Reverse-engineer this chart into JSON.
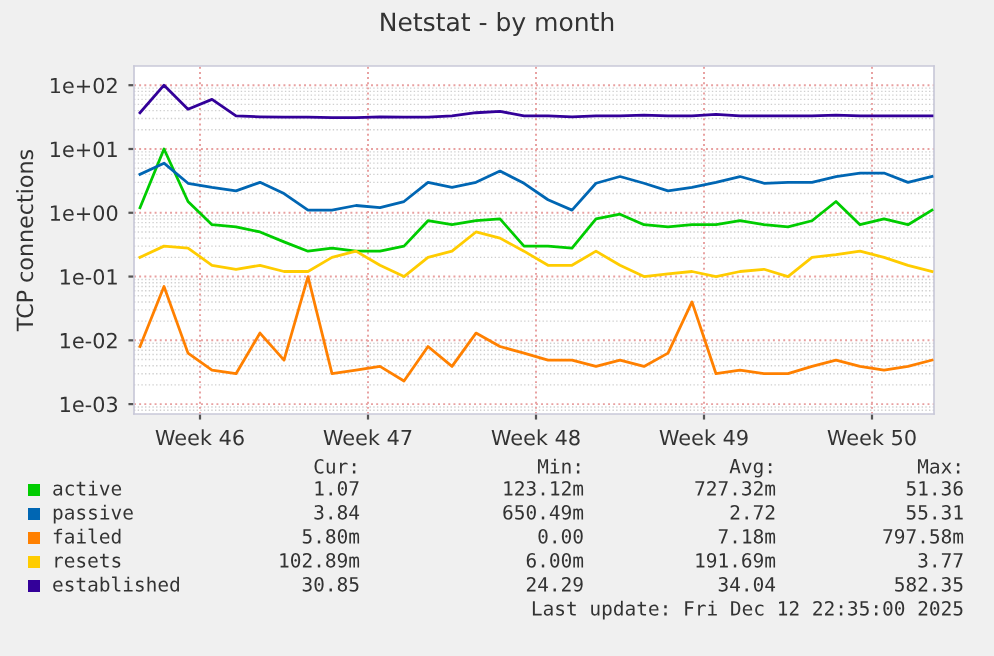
{
  "chart_data": {
    "type": "line",
    "title": "Netstat - by month",
    "ylabel": "TCP connections",
    "x": [
      "2025-11-11",
      "2025-11-12",
      "2025-11-13",
      "2025-11-14",
      "2025-11-15",
      "2025-11-16",
      "2025-11-17",
      "2025-11-18",
      "2025-11-19",
      "2025-11-20",
      "2025-11-21",
      "2025-11-22",
      "2025-11-23",
      "2025-11-24",
      "2025-11-25",
      "2025-11-26",
      "2025-11-27",
      "2025-11-28",
      "2025-11-29",
      "2025-11-30",
      "2025-12-01",
      "2025-12-02",
      "2025-12-03",
      "2025-12-04",
      "2025-12-05",
      "2025-12-06",
      "2025-12-07",
      "2025-12-08",
      "2025-12-09",
      "2025-12-10",
      "2025-12-11",
      "2025-12-12",
      "2025-12-13",
      "2025-12-14"
    ],
    "series": [
      {
        "name": "active",
        "color": "#00cc00",
        "values": [
          1.2,
          10,
          1.5,
          0.65,
          0.6,
          0.5,
          0.35,
          0.25,
          0.28,
          0.25,
          0.25,
          0.3,
          0.75,
          0.65,
          0.75,
          0.8,
          0.3,
          0.3,
          0.28,
          0.8,
          0.95,
          0.65,
          0.6,
          0.65,
          0.65,
          0.75,
          0.65,
          0.6,
          0.75,
          1.5,
          0.65,
          0.8,
          0.65,
          1.1
        ]
      },
      {
        "name": "passive",
        "color": "#0066b3",
        "values": [
          4,
          6,
          2.9,
          2.5,
          2.2,
          3,
          2,
          1.1,
          1.1,
          1.3,
          1.2,
          1.5,
          3,
          2.5,
          3,
          4.5,
          2.9,
          1.6,
          1.1,
          2.9,
          3.7,
          2.9,
          2.2,
          2.5,
          3,
          3.7,
          2.9,
          3,
          3,
          3.7,
          4.2,
          4.2,
          3,
          3.7
        ]
      },
      {
        "name": "failed",
        "color": "#ff8000",
        "values": [
          0.008,
          0.07,
          0.0063,
          0.0034,
          0.003,
          0.013,
          0.0049,
          0.1,
          0.003,
          0.0034,
          0.0039,
          0.0023,
          0.008,
          0.0039,
          0.013,
          0.008,
          0.0063,
          0.0049,
          0.0049,
          0.0039,
          0.0049,
          0.0039,
          0.0063,
          0.04,
          0.003,
          0.0034,
          0.003,
          0.003,
          0.0039,
          0.0049,
          0.0039,
          0.0034,
          0.0039,
          0.0049
        ]
      },
      {
        "name": "resets",
        "color": "#ffcc00",
        "values": [
          0.2,
          0.3,
          0.28,
          0.15,
          0.13,
          0.15,
          0.12,
          0.12,
          0.2,
          0.25,
          0.15,
          0.1,
          0.2,
          0.25,
          0.5,
          0.4,
          0.25,
          0.15,
          0.15,
          0.25,
          0.15,
          0.1,
          0.11,
          0.12,
          0.1,
          0.12,
          0.13,
          0.1,
          0.2,
          0.22,
          0.25,
          0.2,
          0.15,
          0.12
        ]
      },
      {
        "name": "established",
        "color": "#330099",
        "values": [
          37,
          100,
          42,
          60,
          33,
          32,
          31.5,
          31.5,
          31,
          31,
          32,
          31.5,
          31.5,
          33,
          37,
          39,
          33,
          33,
          32,
          33,
          33,
          34,
          33,
          33,
          35,
          33,
          33,
          33,
          33,
          34,
          33,
          33,
          33,
          33
        ]
      }
    ],
    "xlim": [
      "2025-11-10T18:00",
      "2025-12-14T02:00"
    ],
    "xticks": [
      {
        "value": "2025-11-13T12:00",
        "label": "Week 46"
      },
      {
        "value": "2025-11-20T12:00",
        "label": "Week 47"
      },
      {
        "value": "2025-11-27T12:00",
        "label": "Week 48"
      },
      {
        "value": "2025-12-04T12:00",
        "label": "Week 49"
      },
      {
        "value": "2025-12-11T12:00",
        "label": "Week 50"
      }
    ],
    "ylim": [
      0.0007,
      200
    ],
    "log": "y",
    "yticks": [
      {
        "value": 0.001,
        "label": "1e-03"
      },
      {
        "value": 0.01,
        "label": "1e-02"
      },
      {
        "value": 0.1,
        "label": "1e-01"
      },
      {
        "value": 1,
        "label": "1e+00"
      },
      {
        "value": 10,
        "label": "1e+01"
      },
      {
        "value": 100,
        "label": "1e+02"
      }
    ],
    "grid": true,
    "legend": "bottom",
    "marker": "none",
    "line_style": "solid",
    "annotations": [
      "Cur:",
      "Min:",
      "Avg:",
      "Max:",
      "1.07",
      "123.12m",
      "727.32m",
      "51.36",
      "3.84",
      "650.49m",
      "2.72",
      "55.31",
      "5.80m",
      "0.00",
      "7.18m",
      "797.58m",
      "102.89m",
      "6.00m",
      "191.69m",
      "3.77",
      "30.85",
      "24.29",
      "34.04",
      "582.35",
      "Last update: Fri Dec 12 22:35:00 2025"
    ]
  }
}
